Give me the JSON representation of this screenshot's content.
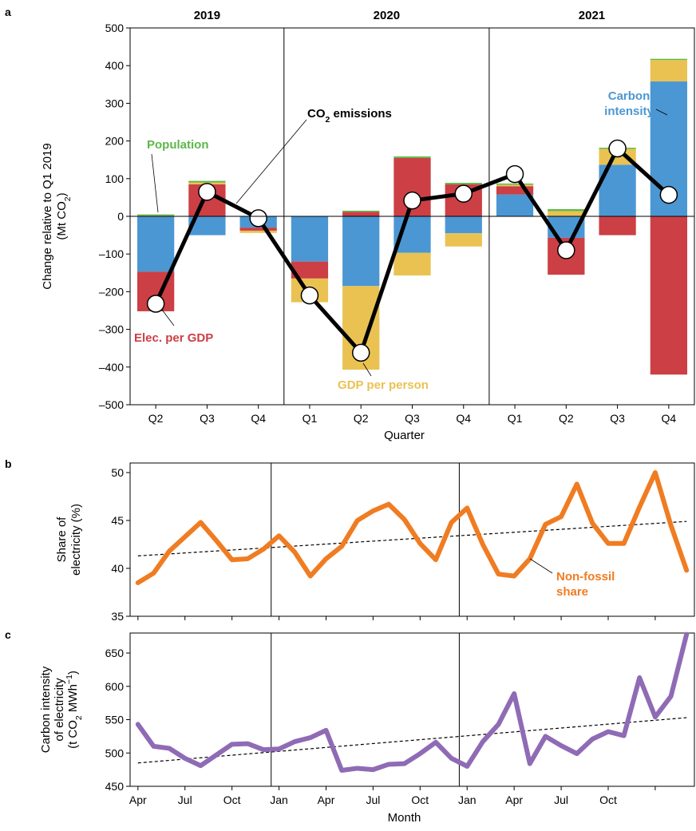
{
  "colors": {
    "population": "#5cb848",
    "carbon_intensity": "#4b97d3",
    "gdp_per_person": "#e9c252",
    "elec_per_gdp": "#cc3f45",
    "emissions_line": "#000000",
    "nonfossil": "#f07c22",
    "carbon_int_line": "#8f6bb5"
  },
  "chart_data": [
    {
      "panel": "a",
      "type": "bar",
      "stacked": true,
      "year_labels": [
        "2019",
        "2020",
        "2021"
      ],
      "categories": [
        "Q2",
        "Q3",
        "Q4",
        "Q1",
        "Q2",
        "Q3",
        "Q4",
        "Q1",
        "Q2",
        "Q3",
        "Q4"
      ],
      "xlabel": "Quarter",
      "ylabel": [
        "Change relative to Q1 2019",
        "(Mt CO",
        "2",
        ")"
      ],
      "ylim": [
        -500,
        500
      ],
      "yticks": [
        -500,
        -400,
        -300,
        -200,
        -100,
        0,
        100,
        200,
        300,
        400,
        500
      ],
      "series": [
        {
          "key": "carbon_intensity",
          "name": "Carbon intensity",
          "values": [
            -147,
            -50,
            -30,
            -120,
            -185,
            -97,
            -45,
            58,
            -57,
            137,
            358
          ]
        },
        {
          "key": "elec_per_gdp",
          "name": "Elec. per GDP",
          "values": [
            -105,
            85,
            -8,
            -45,
            12,
            155,
            85,
            22,
            -98,
            -50,
            -420
          ]
        },
        {
          "key": "gdp_per_person",
          "name": "GDP per person",
          "values": [
            2,
            5,
            -6,
            -63,
            -222,
            -60,
            -35,
            4,
            14,
            42,
            57
          ]
        },
        {
          "key": "population",
          "name": "Population",
          "values": [
            3,
            4,
            0,
            1,
            3,
            4,
            4,
            3,
            5,
            3,
            3
          ]
        }
      ],
      "line": {
        "key": "emissions",
        "name_parts": [
          "CO",
          "2",
          " emissions"
        ],
        "values": [
          -232,
          65,
          -5,
          -210,
          -362,
          42,
          60,
          112,
          -90,
          180,
          57
        ]
      },
      "annotations": {
        "population": "Population",
        "carbon_intensity": [
          "Carbon",
          "intensity"
        ],
        "elec_per_gdp": "Elec. per GDP",
        "gdp_per_person": "GDP per person"
      }
    },
    {
      "panel": "b",
      "type": "line",
      "xlabel": "",
      "ylabel": [
        "Share of",
        "electricity (%)"
      ],
      "ylim": [
        35,
        51
      ],
      "yticks": [
        35,
        40,
        45,
        50
      ],
      "x_start": "2019-04",
      "values": [
        38.5,
        39.5,
        41.8,
        43.3,
        44.8,
        42.9,
        40.9,
        41.0,
        42.0,
        43.4,
        41.7,
        39.2,
        41.0,
        42.3,
        45.0,
        46.0,
        46.7,
        45.1,
        42.6,
        40.9,
        44.8,
        46.3,
        42.5,
        39.4,
        39.2,
        41.0,
        44.6,
        45.4,
        48.8,
        44.7,
        42.6,
        42.6,
        46.4,
        50.0,
        44.5,
        39.8
      ],
      "trend": [
        41.3,
        44.9
      ],
      "legend": [
        "Non-fossil",
        "share"
      ]
    },
    {
      "panel": "c",
      "type": "line",
      "xlabel": "Month",
      "ylabel": [
        "Carbon intensity",
        "of electricity",
        "(t CO",
        "2",
        " MWh",
        "−1",
        ")"
      ],
      "ylim": [
        450,
        680
      ],
      "yticks": [
        450,
        500,
        550,
        600,
        650
      ],
      "x_start": "2019-04",
      "values": [
        543,
        510,
        507,
        492,
        481,
        497,
        513,
        514,
        505,
        506,
        517,
        523,
        534,
        474,
        477,
        475,
        483,
        484,
        499,
        516,
        492,
        480,
        517,
        543,
        589,
        484,
        525,
        511,
        499,
        521,
        532,
        526,
        613,
        554,
        585,
        678
      ],
      "trend": [
        485,
        553
      ],
      "xticks": [
        "Apr",
        "Jul",
        "Oct",
        "Jan",
        "Apr",
        "Jul",
        "Oct",
        "Jan",
        "Apr",
        "Jul",
        "Oct"
      ]
    }
  ],
  "panel_letters": [
    "a",
    "b",
    "c"
  ]
}
